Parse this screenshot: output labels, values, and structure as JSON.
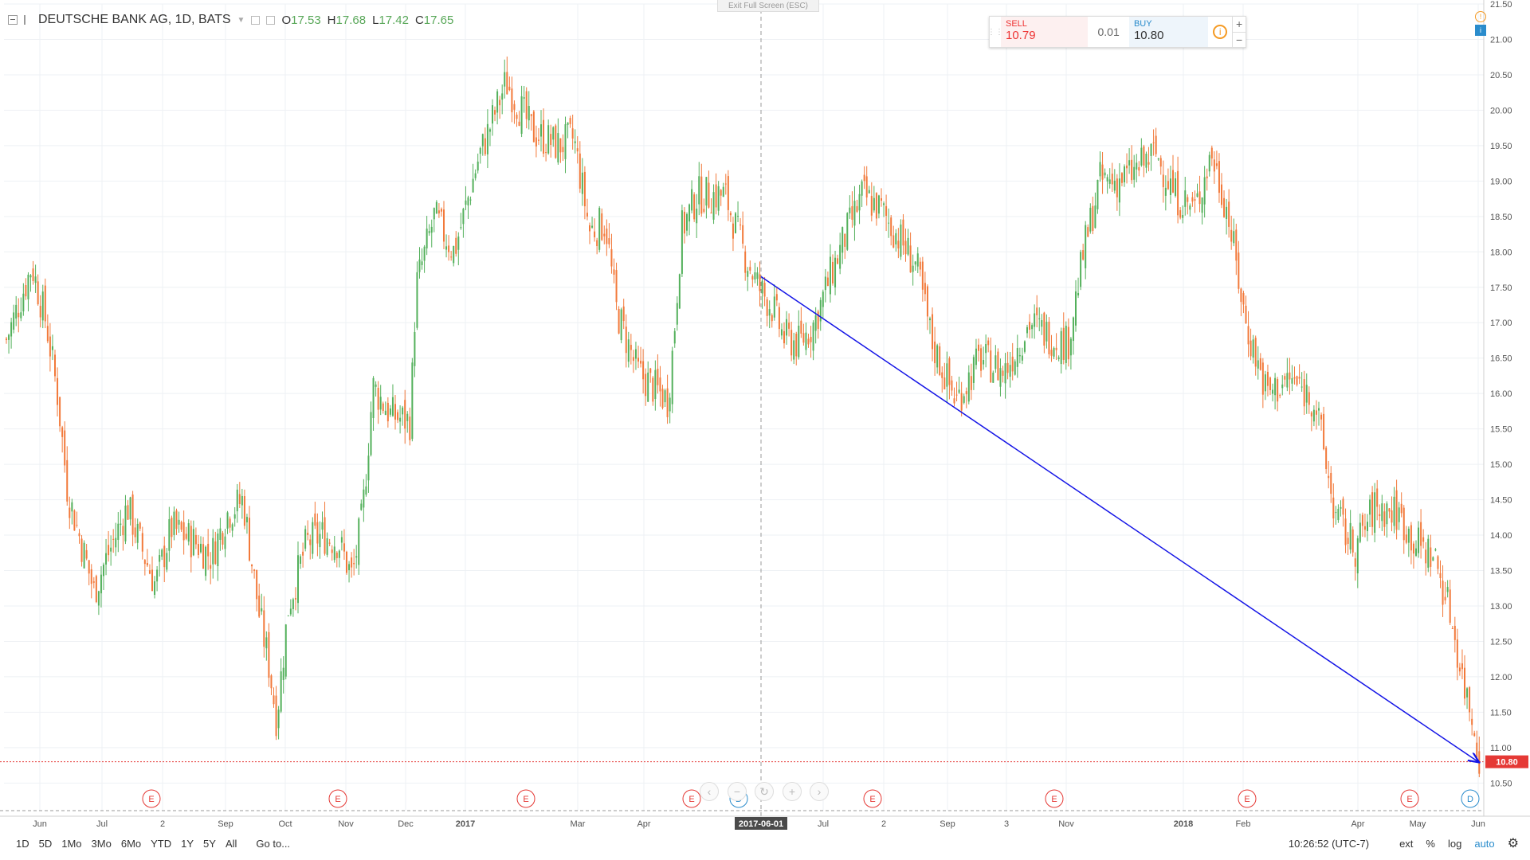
{
  "legend": {
    "symbol": "DEUTSCHE BANK AG, 1D, BATS",
    "open_label": "O",
    "open": "17.53",
    "high_label": "H",
    "high": "17.68",
    "low_label": "L",
    "low": "17.42",
    "close_label": "C",
    "close": "17.65"
  },
  "exit_fullscreen": "Exit Full Screen (ESC)",
  "trade_panel": {
    "sell_label": "SELL",
    "sell_value": "10.79",
    "spread": "0.01",
    "buy_label": "BUY",
    "buy_value": "10.80"
  },
  "bottom_bar": {
    "ranges": [
      "1D",
      "5D",
      "1Mo",
      "3Mo",
      "6Mo",
      "YTD",
      "1Y",
      "5Y",
      "All"
    ],
    "goto": "Go to...",
    "time": "10:26:52 (UTC-7)",
    "ext": "ext",
    "percent": "%",
    "log": "log",
    "auto": "auto"
  },
  "colors": {
    "up": "#53b05b",
    "down": "#f2793a",
    "trendline": "#1414e6",
    "price_line": "#e53935",
    "event_E": "#e53935",
    "event_D": "#2a8ccc"
  },
  "chart_data": {
    "type": "candlestick",
    "title": "DEUTSCHE BANK AG, 1D, BATS",
    "ylim": [
      10.2,
      21.5
    ],
    "y_ticks": [
      "21.50",
      "21.00",
      "20.50",
      "20.00",
      "19.50",
      "19.00",
      "18.50",
      "18.00",
      "17.50",
      "17.00",
      "16.50",
      "16.00",
      "15.50",
      "15.00",
      "14.50",
      "14.00",
      "13.50",
      "13.00",
      "12.50",
      "12.00",
      "11.50",
      "11.00",
      "10.50"
    ],
    "x_ticks": [
      "Jun",
      "Jul",
      "2",
      "Sep",
      "Oct",
      "Nov",
      "Dec",
      "2017",
      "Mar",
      "Apr",
      "Jul",
      "2",
      "Sep",
      "3",
      "Nov",
      "2018",
      "Feb",
      "Apr",
      "May",
      "Jun"
    ],
    "crosshair_date": "2017-06-01",
    "last_price": 10.8,
    "last_price_label": "10.80",
    "trendline": {
      "start": [
        "2017-06-01",
        17.65
      ],
      "end": [
        "2018-05-30",
        10.8
      ]
    },
    "events": [
      {
        "label": "E"
      },
      {
        "label": "E"
      },
      {
        "label": "E"
      },
      {
        "label": "E"
      },
      {
        "label": "D"
      },
      {
        "label": "E"
      },
      {
        "label": "E"
      },
      {
        "label": "E"
      },
      {
        "label": "E"
      },
      {
        "label": "D"
      }
    ],
    "close_path": [
      [
        0,
        16.5
      ],
      [
        40,
        17.8
      ],
      [
        58,
        17.0
      ],
      [
        72,
        16.0
      ],
      [
        85,
        14.6
      ],
      [
        104,
        13.8
      ],
      [
        118,
        13.2
      ],
      [
        131,
        13.6
      ],
      [
        160,
        14.4
      ],
      [
        178,
        13.8
      ],
      [
        195,
        13.3
      ],
      [
        215,
        14.1
      ],
      [
        245,
        13.9
      ],
      [
        265,
        13.7
      ],
      [
        285,
        14.3
      ],
      [
        305,
        14.5
      ],
      [
        325,
        12.9
      ],
      [
        337,
        12.2
      ],
      [
        347,
        11.4
      ],
      [
        362,
        13.0
      ],
      [
        385,
        13.9
      ],
      [
        405,
        14.0
      ],
      [
        425,
        13.9
      ],
      [
        442,
        13.4
      ],
      [
        455,
        14.3
      ],
      [
        468,
        16.1
      ],
      [
        490,
        15.7
      ],
      [
        515,
        15.6
      ],
      [
        522,
        17.5
      ],
      [
        545,
        18.5
      ],
      [
        570,
        18.0
      ],
      [
        600,
        19.3
      ],
      [
        635,
        20.4
      ],
      [
        668,
        19.7
      ],
      [
        700,
        19.5
      ],
      [
        720,
        19.6
      ],
      [
        740,
        18.3
      ],
      [
        760,
        18.4
      ],
      [
        773,
        17.2
      ],
      [
        800,
        16.3
      ],
      [
        838,
        15.9
      ],
      [
        845,
        16.7
      ],
      [
        855,
        18.3
      ],
      [
        875,
        18.8
      ],
      [
        910,
        18.8
      ],
      [
        933,
        18.0
      ],
      [
        952,
        17.5
      ],
      [
        970,
        17.2
      ],
      [
        983,
        16.8
      ],
      [
        1003,
        16.7
      ],
      [
        1022,
        17.0
      ],
      [
        1040,
        17.6
      ],
      [
        1060,
        18.2
      ],
      [
        1082,
        18.8
      ],
      [
        1105,
        18.6
      ],
      [
        1128,
        18.2
      ],
      [
        1150,
        17.8
      ],
      [
        1170,
        16.7
      ],
      [
        1188,
        16.2
      ],
      [
        1200,
        15.9
      ],
      [
        1230,
        16.5
      ],
      [
        1260,
        16.3
      ],
      [
        1292,
        17.0
      ],
      [
        1320,
        16.8
      ],
      [
        1340,
        16.7
      ],
      [
        1360,
        18.0
      ],
      [
        1380,
        19.0
      ],
      [
        1400,
        19.0
      ],
      [
        1420,
        19.1
      ],
      [
        1450,
        19.4
      ],
      [
        1475,
        18.8
      ],
      [
        1500,
        18.6
      ],
      [
        1520,
        19.4
      ],
      [
        1540,
        18.6
      ],
      [
        1563,
        17.0
      ],
      [
        1590,
        16.0
      ],
      [
        1620,
        16.2
      ],
      [
        1650,
        15.9
      ],
      [
        1675,
        14.3
      ],
      [
        1700,
        13.8
      ],
      [
        1725,
        14.4
      ],
      [
        1755,
        14.3
      ],
      [
        1775,
        13.9
      ],
      [
        1800,
        13.7
      ],
      [
        1820,
        12.9
      ],
      [
        1835,
        12.0
      ],
      [
        1848,
        11.4
      ],
      [
        1858,
        10.8
      ]
    ]
  }
}
